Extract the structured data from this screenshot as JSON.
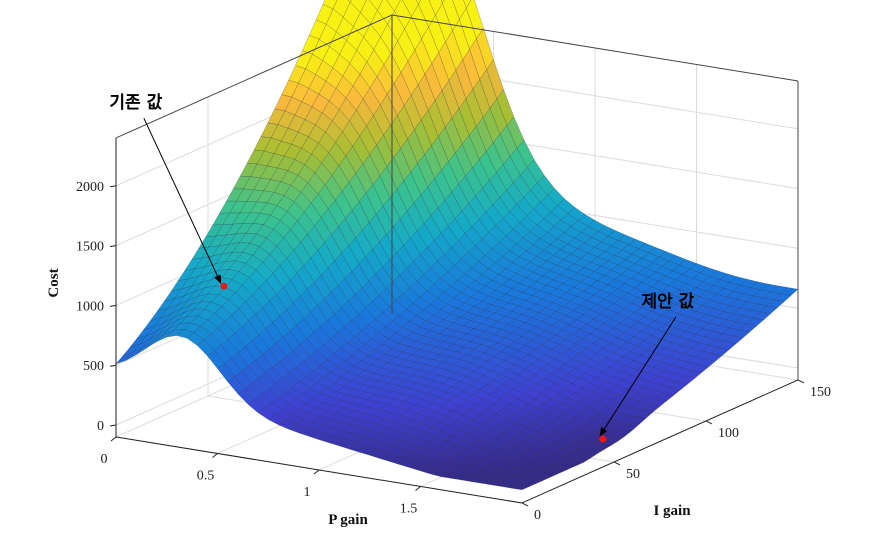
{
  "chart_data": {
    "type": "surface",
    "title": "",
    "xlabel": "P gain",
    "ylabel": "I gain",
    "zlabel": "Cost",
    "xlim": [
      0,
      2
    ],
    "ylim": [
      0,
      150
    ],
    "zlim": [
      -100,
      2400
    ],
    "x_ticks": [
      "0",
      "0.5",
      "1",
      "1.5"
    ],
    "x_tick_values": [
      0,
      0.5,
      1,
      1.5
    ],
    "y_ticks": [
      "0",
      "50",
      "100",
      "150"
    ],
    "y_tick_values": [
      0,
      50,
      100,
      150
    ],
    "z_ticks": [
      "0",
      "500",
      "1000",
      "1500",
      "2000"
    ],
    "z_tick_values": [
      0,
      500,
      1000,
      1500,
      2000
    ],
    "grid": true,
    "colormap": "parula",
    "surface_samples": [
      {
        "p": 0.0,
        "i": 0,
        "cost": 650
      },
      {
        "p": 0.0,
        "i": 150,
        "cost": 2450
      },
      {
        "p": 0.3,
        "i": 0,
        "cost": 760
      },
      {
        "p": 1.0,
        "i": 0,
        "cost": 320
      },
      {
        "p": 2.0,
        "i": 0,
        "cost": 60
      },
      {
        "p": 2.0,
        "i": 60,
        "cost": 40
      },
      {
        "p": 2.0,
        "i": 150,
        "cost": 500
      }
    ],
    "annotations": [
      {
        "text": "기존 값",
        "p": 0.35,
        "i": 20,
        "cost": 1120,
        "color": "#e8191a"
      },
      {
        "text": "제안 값",
        "p": 1.9,
        "i": 55,
        "cost": 30,
        "color": "#e8191a"
      }
    ]
  }
}
